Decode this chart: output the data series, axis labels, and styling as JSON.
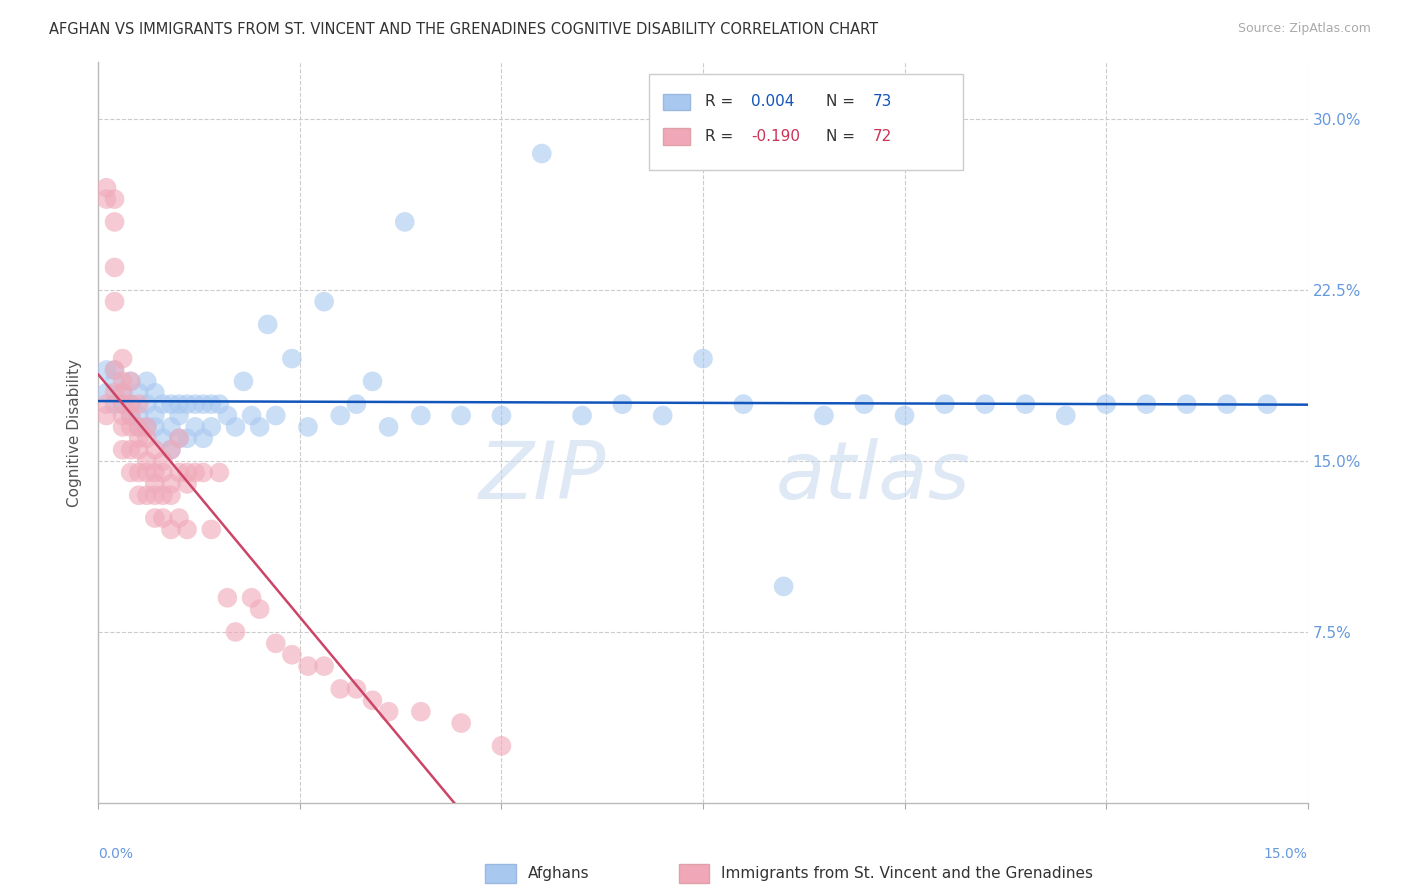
{
  "title": "AFGHAN VS IMMIGRANTS FROM ST. VINCENT AND THE GRENADINES COGNITIVE DISABILITY CORRELATION CHART",
  "source": "Source: ZipAtlas.com",
  "ylabel": "Cognitive Disability",
  "ytick_values": [
    0.075,
    0.15,
    0.225,
    0.3
  ],
  "ytick_labels": [
    "7.5%",
    "15.0%",
    "22.5%",
    "30.0%"
  ],
  "xmin": 0.0,
  "xmax": 0.15,
  "ymin": 0.0,
  "ymax": 0.325,
  "blue_color": "#a8c8f0",
  "pink_color": "#f0a8b8",
  "line_blue_color": "#1155bb",
  "line_pink_solid_color": "#cc4466",
  "line_pink_dash_color": "#e8b0c0",
  "background": "#ffffff",
  "grid_color": "#cccccc",
  "right_axis_color": "#6699dd",
  "afghans_x": [
    0.001,
    0.001,
    0.002,
    0.002,
    0.002,
    0.003,
    0.003,
    0.004,
    0.004,
    0.004,
    0.005,
    0.005,
    0.005,
    0.006,
    0.006,
    0.006,
    0.007,
    0.007,
    0.007,
    0.008,
    0.008,
    0.009,
    0.009,
    0.009,
    0.01,
    0.01,
    0.01,
    0.011,
    0.011,
    0.012,
    0.012,
    0.013,
    0.013,
    0.014,
    0.014,
    0.015,
    0.016,
    0.017,
    0.018,
    0.019,
    0.02,
    0.021,
    0.022,
    0.024,
    0.026,
    0.028,
    0.03,
    0.032,
    0.034,
    0.036,
    0.038,
    0.04,
    0.045,
    0.05,
    0.055,
    0.06,
    0.065,
    0.07,
    0.075,
    0.08,
    0.085,
    0.09,
    0.095,
    0.1,
    0.105,
    0.11,
    0.115,
    0.12,
    0.125,
    0.13,
    0.135,
    0.14,
    0.145
  ],
  "afghans_y": [
    0.18,
    0.19,
    0.175,
    0.185,
    0.19,
    0.175,
    0.18,
    0.17,
    0.175,
    0.185,
    0.165,
    0.17,
    0.18,
    0.165,
    0.175,
    0.185,
    0.165,
    0.17,
    0.18,
    0.16,
    0.175,
    0.155,
    0.165,
    0.175,
    0.16,
    0.17,
    0.175,
    0.16,
    0.175,
    0.165,
    0.175,
    0.16,
    0.175,
    0.165,
    0.175,
    0.175,
    0.17,
    0.165,
    0.185,
    0.17,
    0.165,
    0.21,
    0.17,
    0.195,
    0.165,
    0.22,
    0.17,
    0.175,
    0.185,
    0.165,
    0.255,
    0.17,
    0.17,
    0.17,
    0.285,
    0.17,
    0.175,
    0.17,
    0.195,
    0.175,
    0.095,
    0.17,
    0.175,
    0.17,
    0.175,
    0.175,
    0.175,
    0.17,
    0.175,
    0.175,
    0.175,
    0.175,
    0.175
  ],
  "svg_x": [
    0.001,
    0.001,
    0.001,
    0.001,
    0.002,
    0.002,
    0.002,
    0.002,
    0.002,
    0.002,
    0.003,
    0.003,
    0.003,
    0.003,
    0.003,
    0.003,
    0.003,
    0.004,
    0.004,
    0.004,
    0.004,
    0.004,
    0.004,
    0.005,
    0.005,
    0.005,
    0.005,
    0.005,
    0.005,
    0.006,
    0.006,
    0.006,
    0.006,
    0.006,
    0.007,
    0.007,
    0.007,
    0.007,
    0.007,
    0.008,
    0.008,
    0.008,
    0.008,
    0.009,
    0.009,
    0.009,
    0.009,
    0.01,
    0.01,
    0.01,
    0.011,
    0.011,
    0.011,
    0.012,
    0.013,
    0.014,
    0.015,
    0.016,
    0.017,
    0.019,
    0.02,
    0.022,
    0.024,
    0.026,
    0.028,
    0.03,
    0.032,
    0.034,
    0.036,
    0.04,
    0.045,
    0.05
  ],
  "svg_y": [
    0.27,
    0.265,
    0.175,
    0.17,
    0.265,
    0.255,
    0.235,
    0.22,
    0.19,
    0.18,
    0.185,
    0.195,
    0.18,
    0.175,
    0.17,
    0.165,
    0.155,
    0.185,
    0.175,
    0.17,
    0.165,
    0.155,
    0.145,
    0.175,
    0.165,
    0.16,
    0.155,
    0.145,
    0.135,
    0.165,
    0.16,
    0.15,
    0.145,
    0.135,
    0.155,
    0.145,
    0.14,
    0.135,
    0.125,
    0.15,
    0.145,
    0.135,
    0.125,
    0.155,
    0.14,
    0.135,
    0.12,
    0.16,
    0.145,
    0.125,
    0.145,
    0.14,
    0.12,
    0.145,
    0.145,
    0.12,
    0.145,
    0.09,
    0.075,
    0.09,
    0.085,
    0.07,
    0.065,
    0.06,
    0.06,
    0.05,
    0.05,
    0.045,
    0.04,
    0.04,
    0.035,
    0.025
  ]
}
